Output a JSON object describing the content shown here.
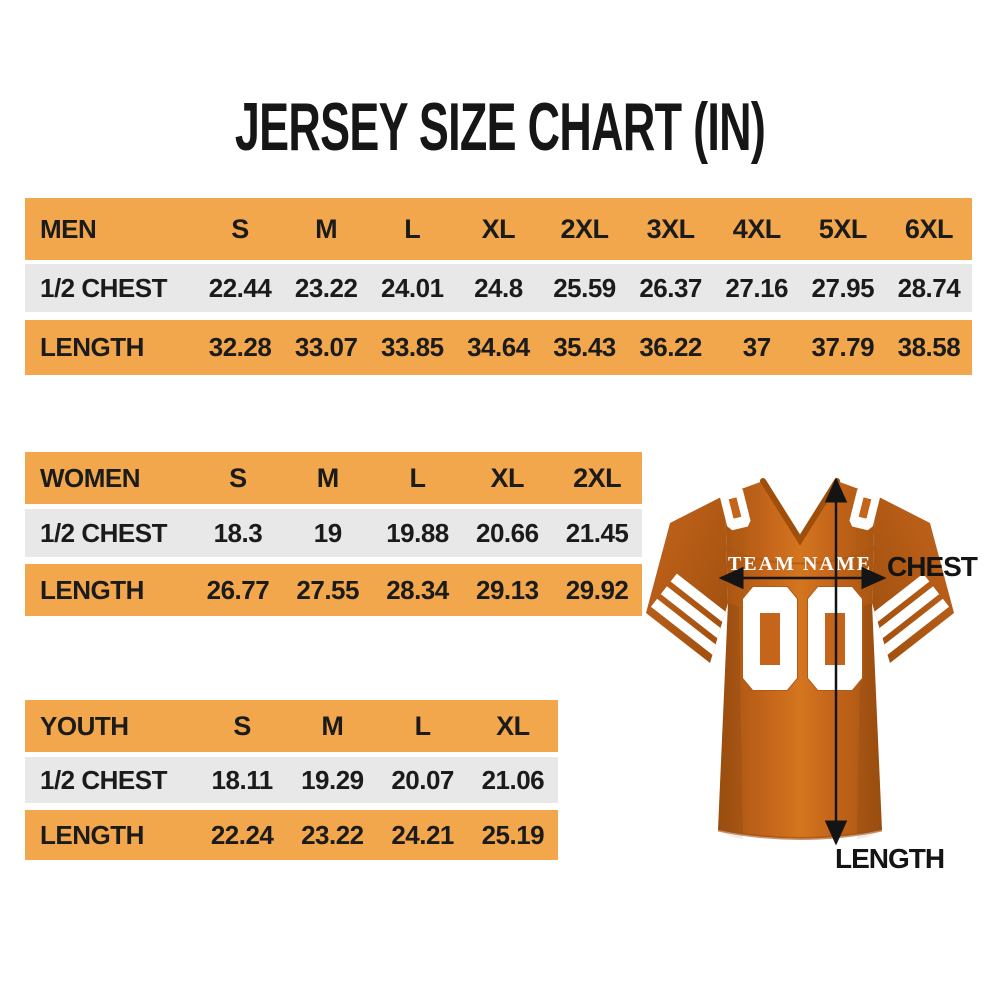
{
  "title": "JERSEY SIZE CHART (IN)",
  "colors": {
    "table_orange": "#F3A74D",
    "row_gray": "#E8E8E8",
    "text_black": "#1B1B1B",
    "jersey_orange": "#C4651B",
    "jersey_dark": "#A45310",
    "jersey_light": "#D4751F",
    "arrow_black": "#141414",
    "white": "#FFFFFF"
  },
  "chart_data": [
    {
      "type": "table",
      "group": "MEN",
      "columns": [
        "S",
        "M",
        "L",
        "XL",
        "2XL",
        "3XL",
        "4XL",
        "5XL",
        "6XL"
      ],
      "rows": [
        {
          "label": "1/2 CHEST",
          "values": [
            "22.44",
            "23.22",
            "24.01",
            "24.8",
            "25.59",
            "26.37",
            "27.16",
            "27.95",
            "28.74"
          ]
        },
        {
          "label": "LENGTH",
          "values": [
            "32.28",
            "33.07",
            "33.85",
            "34.64",
            "35.43",
            "36.22",
            "37",
            "37.79",
            "38.58"
          ]
        }
      ]
    },
    {
      "type": "table",
      "group": "WOMEN",
      "columns": [
        "S",
        "M",
        "L",
        "XL",
        "2XL"
      ],
      "rows": [
        {
          "label": "1/2 CHEST",
          "values": [
            "18.3",
            "19",
            "19.88",
            "20.66",
            "21.45"
          ]
        },
        {
          "label": "LENGTH",
          "values": [
            "26.77",
            "27.55",
            "28.34",
            "29.13",
            "29.92"
          ]
        }
      ]
    },
    {
      "type": "table",
      "group": "YOUTH",
      "columns": [
        "S",
        "M",
        "L",
        "XL"
      ],
      "rows": [
        {
          "label": "1/2 CHEST",
          "values": [
            "18.11",
            "19.29",
            "20.07",
            "21.06"
          ]
        },
        {
          "label": "LENGTH",
          "values": [
            "22.24",
            "23.22",
            "24.21",
            "25.19"
          ]
        }
      ]
    }
  ],
  "jersey": {
    "team_name": "TEAM NAME",
    "number": "00",
    "shoulder_number": "0",
    "chest_label": "CHEST",
    "length_label": "LENGTH"
  }
}
